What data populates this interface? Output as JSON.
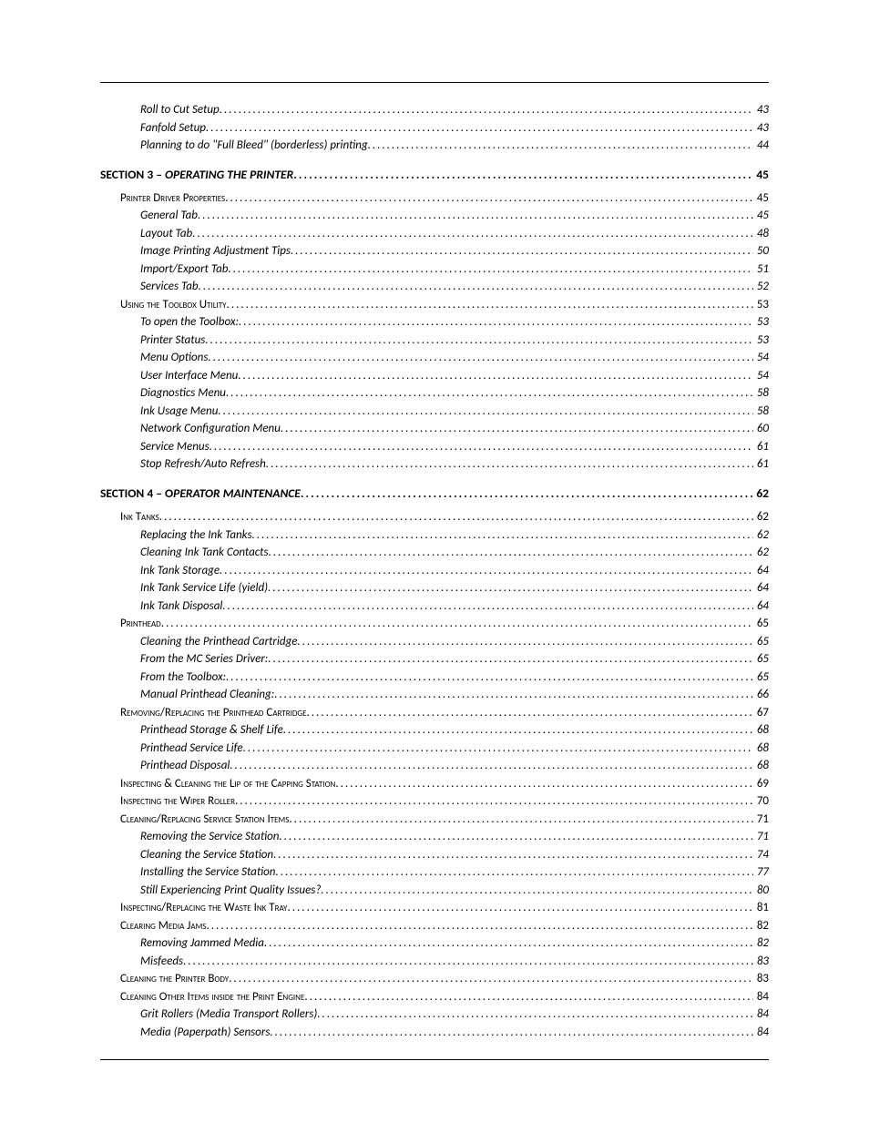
{
  "typography": {
    "fontFamily": "Calibri, Arial, sans-serif",
    "baseFontSizePt": 10,
    "textColor": "#000000",
    "backgroundColor": "#ffffff",
    "ruleColor": "#000000"
  },
  "layout": {
    "pageWidthPx": 954,
    "pageHeightPx": 1235,
    "indentLevel1Px": 0,
    "indentLevel2Px": 22,
    "indentLevel3Px": 44
  },
  "toc": [
    {
      "level": 3,
      "title": "Roll to Cut Setup",
      "page": "43"
    },
    {
      "level": 3,
      "title": "Fanfold Setup",
      "page": "43"
    },
    {
      "level": 3,
      "title": "Planning to do \"Full Bleed\" (borderless) printing",
      "page": "44"
    },
    {
      "level": 1,
      "section": "SECTION 3 – ",
      "title": "OPERATING THE PRINTER",
      "page": "45"
    },
    {
      "level": 2,
      "title": "Printer Driver Properties",
      "page": "45"
    },
    {
      "level": 3,
      "title": "General Tab",
      "page": "45"
    },
    {
      "level": 3,
      "title": "Layout Tab",
      "page": "48"
    },
    {
      "level": 3,
      "title": "Image Printing Adjustment Tips",
      "page": "50"
    },
    {
      "level": 3,
      "title": "Import/Export Tab",
      "page": "51"
    },
    {
      "level": 3,
      "title": "Services Tab",
      "page": "52"
    },
    {
      "level": 2,
      "title": "Using the Toolbox Utility",
      "page": "53"
    },
    {
      "level": 3,
      "title": "To open the Toolbox:",
      "page": "53"
    },
    {
      "level": 3,
      "title": "Printer Status",
      "page": "53"
    },
    {
      "level": 3,
      "title": "Menu Options",
      "page": "54"
    },
    {
      "level": 3,
      "title": "User Interface Menu",
      "page": "54"
    },
    {
      "level": 3,
      "title": "Diagnostics Menu",
      "page": "58"
    },
    {
      "level": 3,
      "title": "Ink Usage Menu",
      "page": "58"
    },
    {
      "level": 3,
      "title": "Network Configuration Menu",
      "page": "60"
    },
    {
      "level": 3,
      "title": "Service Menus",
      "page": "61"
    },
    {
      "level": 3,
      "title": "Stop Refresh/Auto Refresh",
      "page": "61"
    },
    {
      "level": 1,
      "section": "SECTION 4 – O",
      "title": "PERATOR MAINTENANCE",
      "page": "62"
    },
    {
      "level": 2,
      "title": "Ink Tanks",
      "page": "62"
    },
    {
      "level": 3,
      "title": "Replacing the Ink Tanks",
      "page": "62"
    },
    {
      "level": 3,
      "title": "Cleaning Ink Tank Contacts",
      "page": "62"
    },
    {
      "level": 3,
      "title": "Ink Tank Storage",
      "page": "64"
    },
    {
      "level": 3,
      "title": "Ink Tank Service Life (yield)",
      "page": "64"
    },
    {
      "level": 3,
      "title": "Ink Tank Disposal",
      "page": "64"
    },
    {
      "level": 2,
      "title": "Printhead",
      "page": "65"
    },
    {
      "level": 3,
      "title": "Cleaning the Printhead Cartridge",
      "page": "65"
    },
    {
      "level": 3,
      "title": "From the MC Series Driver:",
      "page": "65"
    },
    {
      "level": 3,
      "title": "From the Toolbox:",
      "page": "65"
    },
    {
      "level": 3,
      "title": "Manual Printhead Cleaning:",
      "page": "66"
    },
    {
      "level": 2,
      "title": "Removing/Replacing the Printhead Cartridge",
      "page": "67"
    },
    {
      "level": 3,
      "title": "Printhead Storage & Shelf Life",
      "page": "68"
    },
    {
      "level": 3,
      "title": "Printhead Service Life",
      "page": "68"
    },
    {
      "level": 3,
      "title": "Printhead Disposal",
      "page": "68"
    },
    {
      "level": 2,
      "title": "Inspecting & Cleaning the Lip of the Capping Station",
      "page": "69"
    },
    {
      "level": 2,
      "title": "Inspecting the Wiper Roller",
      "page": "70"
    },
    {
      "level": 2,
      "title": "Cleaning/Replacing Service Station Items",
      "page": "71"
    },
    {
      "level": 3,
      "title": "Removing the Service Station",
      "page": "71"
    },
    {
      "level": 3,
      "title": "Cleaning the Service Station",
      "page": "74"
    },
    {
      "level": 3,
      "title": "Installing the Service Station",
      "page": "77"
    },
    {
      "level": 3,
      "title": "Still Experiencing Print Quality Issues?",
      "page": "80"
    },
    {
      "level": 2,
      "title": "Inspecting/Replacing the Waste Ink Tray",
      "page": "81"
    },
    {
      "level": 2,
      "title": "Clearing Media Jams",
      "page": "82"
    },
    {
      "level": 3,
      "title": "Removing Jammed Media",
      "page": "82"
    },
    {
      "level": 3,
      "title": "Misfeeds",
      "page": "83"
    },
    {
      "level": 2,
      "title": "Cleaning the Printer Body",
      "page": "83"
    },
    {
      "level": 2,
      "title": "Cleaning Other Items inside the Print Engine",
      "page": "84"
    },
    {
      "level": 3,
      "title": "Grit Rollers (Media Transport Rollers)",
      "page": "84"
    },
    {
      "level": 3,
      "title": "Media (Paperpath) Sensors",
      "page": "84"
    }
  ]
}
